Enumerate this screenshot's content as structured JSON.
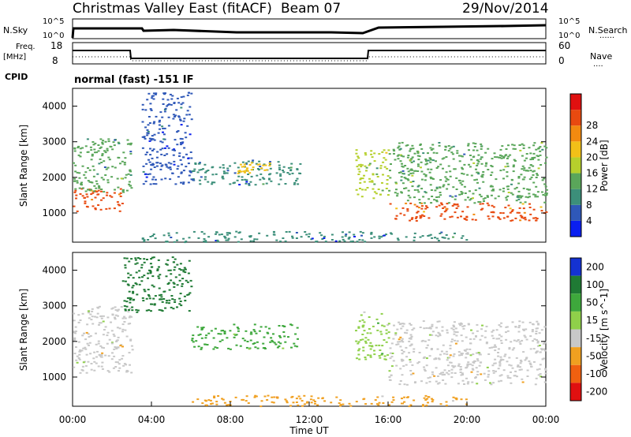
{
  "header": {
    "title": "Christmas Valley East (fitACF)",
    "beam": "Beam 07",
    "date": "29/Nov/2014"
  },
  "status_panel": {
    "nsky_label": "N.Sky",
    "nsearch_label": "N.Search",
    "nsearch_dots": "......",
    "freq_label": "Freq.",
    "freq_unit": "[MHz]",
    "nave_label": "Nave",
    "nave_dots": "....",
    "cpid_label": "CPID",
    "cpid_value": "normal (fast) -151 IF",
    "noise_ticks_left": [
      "10^5",
      "10^0"
    ],
    "noise_ticks_right": [
      "10^5",
      "10^0"
    ],
    "freq_ticks": [
      "18",
      "8"
    ],
    "nave_ticks": [
      "60",
      "0"
    ]
  },
  "chart_data": [
    {
      "type": "heatmap",
      "name": "power",
      "ylabel": "Slant Range [km]",
      "ylim": [
        180,
        4500
      ],
      "yticks": [
        1000,
        2000,
        3000,
        4000
      ],
      "colorbar": {
        "label": "Power [dB]",
        "ticks": [
          4,
          8,
          12,
          16,
          20,
          24,
          28
        ],
        "colors": [
          "#0a1ff0",
          "#2f58b8",
          "#3c8f7a",
          "#5aa65a",
          "#b6d02c",
          "#f2c018",
          "#f28a10",
          "#e84a10",
          "#e01010"
        ]
      },
      "echo_regions": [
        {
          "t0": 0.0,
          "t1": 2.5,
          "r0": 1050,
          "r1": 1700,
          "level": 28
        },
        {
          "t0": 0.0,
          "t1": 3.0,
          "r0": 1600,
          "r1": 3100,
          "level": 12
        },
        {
          "t0": 3.5,
          "t1": 6.0,
          "r0": 1800,
          "r1": 4400,
          "level": 6
        },
        {
          "t0": 6.0,
          "t1": 11.5,
          "r0": 1800,
          "r1": 2500,
          "level": 10
        },
        {
          "t0": 8.2,
          "t1": 10.0,
          "r0": 2100,
          "r1": 2450,
          "level": 22
        },
        {
          "t0": 14.3,
          "t1": 16.0,
          "r0": 1400,
          "r1": 2800,
          "level": 16
        },
        {
          "t0": 16.0,
          "t1": 24.0,
          "r0": 800,
          "r1": 1300,
          "level": 28
        },
        {
          "t0": 16.0,
          "t1": 24.0,
          "r0": 1300,
          "r1": 3000,
          "level": 14
        },
        {
          "t0": 3.5,
          "t1": 20.0,
          "r0": 200,
          "r1": 500,
          "level": 8
        }
      ]
    },
    {
      "type": "heatmap",
      "name": "velocity",
      "xlabel": "Time UT",
      "ylabel": "Slant Range [km]",
      "ylim": [
        180,
        4500
      ],
      "yticks": [
        1000,
        2000,
        3000,
        4000
      ],
      "xticks": [
        "00:00",
        "04:00",
        "08:00",
        "12:00",
        "16:00",
        "20:00",
        "00:00"
      ],
      "xlim_hours": [
        0,
        24
      ],
      "colorbar": {
        "label": "Velocity [m s^-1]",
        "ticks": [
          200,
          100,
          50,
          15,
          -15,
          -50,
          -100,
          -200
        ],
        "colors": [
          "#1432d2",
          "#1f7a34",
          "#3ea83c",
          "#8fd04a",
          "#c8c8c8",
          "#f0a020",
          "#f06010",
          "#e01010"
        ]
      },
      "echo_regions": [
        {
          "t0": 0.0,
          "t1": 3.0,
          "r0": 1100,
          "r1": 3000,
          "level": 0
        },
        {
          "t0": 2.5,
          "t1": 6.0,
          "r0": 2800,
          "r1": 4400,
          "level": 150
        },
        {
          "t0": 6.0,
          "t1": 11.5,
          "r0": 1800,
          "r1": 2500,
          "level": 60
        },
        {
          "t0": 14.3,
          "t1": 16.0,
          "r0": 1500,
          "r1": 2900,
          "level": 40
        },
        {
          "t0": 16.0,
          "t1": 24.0,
          "r0": 800,
          "r1": 2600,
          "level": 0
        },
        {
          "t0": 6.0,
          "t1": 20.0,
          "r0": 200,
          "r1": 500,
          "level": -40
        }
      ]
    }
  ]
}
